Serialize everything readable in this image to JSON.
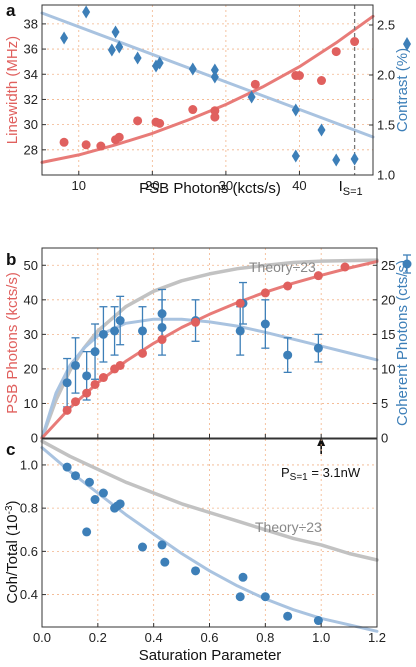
{
  "colors": {
    "red": "#e0605e",
    "red_line": "#e87b78",
    "blue": "#3d7fb8",
    "blue_line": "#a9c3e0",
    "gray": "#c2c2c2",
    "grid": "#f2b48a"
  },
  "chart_data": [
    {
      "panel": "a",
      "type": "scatter",
      "xlabel": "PSB Photons (kcts/s)",
      "xlim": [
        5,
        50
      ],
      "xticks": [
        10,
        20,
        30,
        40
      ],
      "ylabel_left": "Linewidth (MHz)",
      "ylim_left": [
        26,
        39.5
      ],
      "yticks_left": [
        28,
        30,
        32,
        34,
        36,
        38
      ],
      "ylabel_right": "Contrast (%)",
      "ylim_right": [
        1.0,
        2.7
      ],
      "yticks_right": [
        1.0,
        1.5,
        2.0,
        2.5
      ],
      "grid": true,
      "vline_x": 47.5,
      "vline_label_main": "I",
      "vline_label_sub": "S=1",
      "series": [
        {
          "axis": "left",
          "marker": "circle",
          "x": [
            8,
            11,
            13,
            15,
            15.5,
            18,
            20.5,
            21,
            25.5,
            28.5,
            28.5,
            34,
            39.5,
            40,
            43,
            45,
            47.5
          ],
          "y": [
            28.6,
            28.4,
            28.3,
            28.8,
            29.0,
            30.3,
            30.2,
            30.1,
            31.2,
            31.1,
            30.6,
            33.2,
            33.9,
            33.9,
            33.5,
            35.8,
            36.6
          ]
        },
        {
          "axis": "right",
          "marker": "diamond",
          "x": [
            8,
            11,
            14.5,
            15,
            15.5,
            18,
            20.5,
            21,
            25.5,
            28.5,
            28.5,
            33.5,
            39.5,
            39.5,
            43,
            45,
            47.5
          ],
          "y": [
            2.37,
            2.63,
            2.25,
            2.43,
            2.28,
            2.17,
            2.09,
            2.12,
            2.06,
            2.05,
            1.98,
            1.78,
            1.65,
            1.19,
            1.45,
            1.15,
            1.16
          ]
        }
      ],
      "fit_left": {
        "x": [
          5,
          10,
          15,
          20,
          25,
          30,
          35,
          40,
          45,
          50
        ],
        "y": [
          27.0,
          27.6,
          28.4,
          29.3,
          30.4,
          31.6,
          33.0,
          34.6,
          36.5,
          38.6
        ]
      },
      "fit_right": {
        "x": [
          5,
          50
        ],
        "y": [
          2.62,
          1.38
        ]
      }
    },
    {
      "panel": "b",
      "type": "scatter",
      "xlim": [
        0,
        1.2
      ],
      "xticks": [
        0.0,
        0.2,
        0.4,
        0.6,
        0.8,
        1.0,
        1.2
      ],
      "ylabel_left": "PSB Photons (kcts/s)",
      "ylim_left": [
        0,
        55
      ],
      "yticks_left": [
        0,
        10,
        20,
        30,
        40,
        50
      ],
      "ylabel_right": "Coherent Photons (cts/s)",
      "ylim_right": [
        0,
        27.5
      ],
      "yticks_right": [
        0,
        5,
        10,
        15,
        20,
        25
      ],
      "grid": true,
      "series": [
        {
          "axis": "left",
          "marker": "circle",
          "x": [
            0.09,
            0.12,
            0.16,
            0.19,
            0.22,
            0.26,
            0.28,
            0.36,
            0.43,
            0.55,
            0.71,
            0.8,
            0.88,
            0.99
          ],
          "y": [
            8,
            10.5,
            13,
            15.5,
            17.5,
            20,
            21,
            24.5,
            28.5,
            33.5,
            39,
            42,
            44,
            47
          ]
        },
        {
          "axis": "right",
          "marker": "circle",
          "errorbars": true,
          "x": [
            0.09,
            0.12,
            0.16,
            0.19,
            0.22,
            0.26,
            0.28,
            0.36,
            0.43,
            0.43,
            0.55,
            0.71,
            0.72,
            0.8,
            0.88,
            0.99
          ],
          "y": [
            8,
            10.5,
            9,
            12.5,
            15,
            15.5,
            17,
            15.5,
            16,
            18,
            17,
            15.5,
            19.5,
            16.5,
            12,
            13
          ],
          "err": [
            3.5,
            4,
            3.5,
            4,
            4,
            3.5,
            3.5,
            3.5,
            4,
            3.5,
            3,
            3.5,
            3,
            3.5,
            2.5,
            2
          ]
        }
      ],
      "fit_left": {
        "x": [
          0,
          0.1,
          0.2,
          0.3,
          0.4,
          0.5,
          0.6,
          0.7,
          0.8,
          0.9,
          1.0,
          1.1,
          1.2
        ],
        "y": [
          0,
          8.7,
          16,
          22.2,
          27.4,
          32,
          35.8,
          39.2,
          42.2,
          44.8,
          47.1,
          49.2,
          51.1
        ]
      },
      "fit_right": {
        "x": [
          0,
          0.05,
          0.1,
          0.15,
          0.2,
          0.3,
          0.4,
          0.5,
          0.6,
          0.7,
          0.8,
          0.9,
          1.0,
          1.1,
          1.2
        ],
        "y": [
          0,
          6.5,
          10.5,
          13,
          14.8,
          16.6,
          17.2,
          17.2,
          16.8,
          16.2,
          15.3,
          14.3,
          13.3,
          12.3,
          11.3
        ]
      },
      "theory": {
        "label": "Theory÷23",
        "x": [
          0,
          0.05,
          0.1,
          0.15,
          0.2,
          0.3,
          0.4,
          0.5,
          0.6,
          0.7,
          0.8,
          0.9,
          1.0,
          1.2
        ],
        "y": [
          0,
          11,
          19.5,
          26,
          31,
          38,
          42.5,
          45.5,
          47.5,
          49,
          50,
          50.8,
          51.2,
          51.5
        ]
      },
      "arrow_x": 1.0,
      "arrow_label_main": "P",
      "arrow_label_sub": "S=1",
      "arrow_label_rest": " = 3.1nW"
    },
    {
      "panel": "c",
      "type": "scatter",
      "xlabel": "Saturation Parameter",
      "xlim": [
        0,
        1.2
      ],
      "xticks": [
        0.0,
        0.2,
        0.4,
        0.6,
        0.8,
        1.0,
        1.2
      ],
      "ylabel": "Coh/Total (10",
      "ylabel_sup": "-3",
      "ylabel_end": ")",
      "ylim": [
        0.25,
        1.12
      ],
      "yticks": [
        0.4,
        0.6,
        0.8,
        1.0
      ],
      "grid": true,
      "series": [
        {
          "marker": "circle",
          "x": [
            0.09,
            0.12,
            0.16,
            0.17,
            0.19,
            0.22,
            0.26,
            0.27,
            0.28,
            0.36,
            0.43,
            0.44,
            0.55,
            0.71,
            0.72,
            0.8,
            0.88,
            0.99
          ],
          "y": [
            0.99,
            0.95,
            0.69,
            0.92,
            0.84,
            0.87,
            0.8,
            0.81,
            0.82,
            0.62,
            0.63,
            0.55,
            0.51,
            0.39,
            0.48,
            0.39,
            0.3,
            0.28
          ]
        }
      ],
      "fit": {
        "x": [
          0,
          0.1,
          0.2,
          0.3,
          0.4,
          0.5,
          0.6,
          0.7,
          0.8,
          0.9,
          1.0,
          1.1,
          1.2
        ],
        "y": [
          1.08,
          0.97,
          0.87,
          0.77,
          0.68,
          0.59,
          0.51,
          0.44,
          0.38,
          0.33,
          0.29,
          0.26,
          0.23
        ]
      },
      "theory": {
        "label": "Theory÷23",
        "x": [
          0,
          0.1,
          0.2,
          0.3,
          0.4,
          0.5,
          0.6,
          0.7,
          0.8,
          0.9,
          1.0,
          1.1,
          1.2
        ],
        "y": [
          1.11,
          1.04,
          0.98,
          0.92,
          0.87,
          0.82,
          0.78,
          0.74,
          0.7,
          0.66,
          0.63,
          0.59,
          0.56
        ]
      }
    }
  ]
}
